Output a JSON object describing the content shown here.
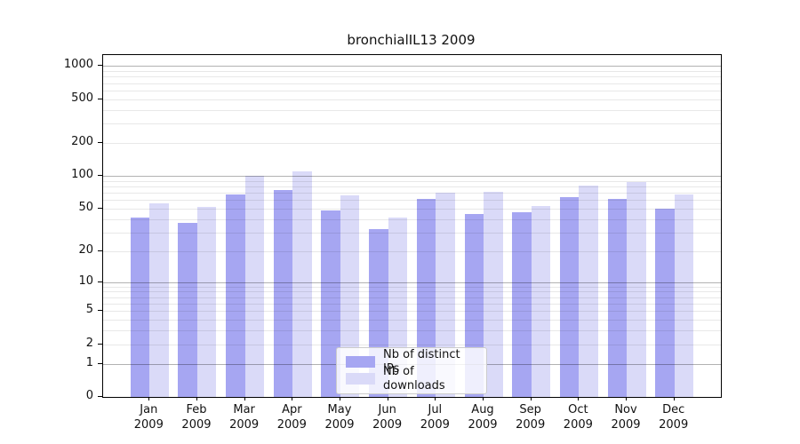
{
  "chart_data": {
    "type": "bar",
    "title": "bronchialIL13 2009",
    "categories": [
      "Jan 2009",
      "Feb 2009",
      "Mar 2009",
      "Apr 2009",
      "May 2009",
      "Jun 2009",
      "Jul 2009",
      "Aug 2009",
      "Sep 2009",
      "Oct 2009",
      "Nov 2009",
      "Dec 2009"
    ],
    "series": [
      {
        "name": "Nb of distinct IPs",
        "color": "#a6a6f2",
        "values": [
          41,
          37,
          67,
          74,
          48,
          32,
          61,
          45,
          46,
          64,
          62,
          50
        ]
      },
      {
        "name": "Nb of downloads",
        "color": "#dadaf8",
        "values": [
          56,
          52,
          100,
          110,
          66,
          41,
          70,
          72,
          53,
          82,
          88,
          68
        ]
      }
    ],
    "xlabel": "",
    "ylabel": "",
    "y_axis": {
      "scale": "log(1+y)",
      "tick_values": [
        1000,
        500,
        200,
        100,
        50,
        20,
        10,
        5,
        2,
        1,
        0
      ],
      "tick_labels": [
        "1000",
        "500",
        "200",
        "100",
        "50",
        "20",
        "10",
        "5",
        "2",
        "1",
        "0"
      ],
      "ylim": [
        0,
        1260
      ]
    },
    "legend": {
      "position": "bottom-center",
      "entries": [
        "Nb of distinct IPs",
        "Nb of downloads"
      ]
    },
    "grid": "horizontal major and minor gridlines, drawn over bars"
  },
  "colors": {
    "background": "#ffffff",
    "axis": "#000000",
    "major_grid": "rgba(0,0,0,0.30)",
    "minor_grid": "rgba(0,0,0,0.09)",
    "legend_border": "#cccccc",
    "text": "#111111"
  }
}
